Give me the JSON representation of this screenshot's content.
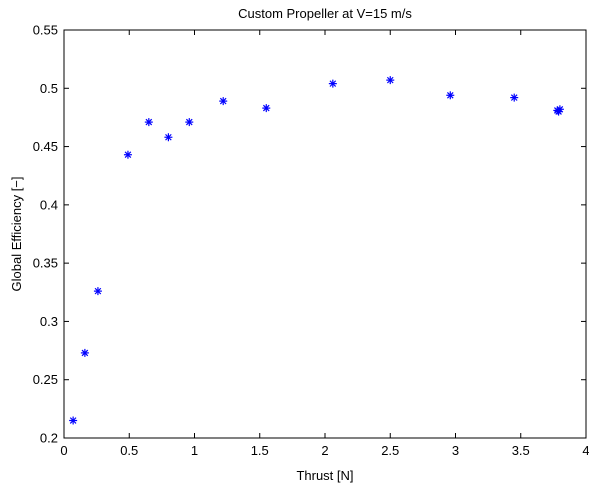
{
  "chart_data": {
    "type": "scatter",
    "title": "Custom Propeller at V=15 m/s",
    "xlabel": "Thrust [N]",
    "ylabel": "Global Efficiency [−]",
    "xlim": [
      0,
      4
    ],
    "ylim": [
      0.2,
      0.55
    ],
    "xticks": [
      0,
      0.5,
      1,
      1.5,
      2,
      2.5,
      3,
      3.5,
      4
    ],
    "yticks": [
      0.2,
      0.25,
      0.3,
      0.35,
      0.4,
      0.45,
      0.5,
      0.55
    ],
    "xtick_labels": [
      "0",
      "0.5",
      "1",
      "1.5",
      "2",
      "2.5",
      "3",
      "3.5",
      "4"
    ],
    "ytick_labels": [
      "0.2",
      "0.25",
      "0.3",
      "0.35",
      "0.4",
      "0.45",
      "0.5",
      "0.55"
    ],
    "marker": "asterisk",
    "marker_color": "#0000ff",
    "grid": false,
    "series": [
      {
        "points": [
          {
            "x": 0.07,
            "y": 0.215
          },
          {
            "x": 0.16,
            "y": 0.273
          },
          {
            "x": 0.26,
            "y": 0.326
          },
          {
            "x": 0.49,
            "y": 0.443
          },
          {
            "x": 0.65,
            "y": 0.471
          },
          {
            "x": 0.8,
            "y": 0.458
          },
          {
            "x": 0.96,
            "y": 0.471
          },
          {
            "x": 1.22,
            "y": 0.489
          },
          {
            "x": 1.55,
            "y": 0.483
          },
          {
            "x": 2.06,
            "y": 0.504
          },
          {
            "x": 2.5,
            "y": 0.507
          },
          {
            "x": 2.96,
            "y": 0.494
          },
          {
            "x": 3.45,
            "y": 0.492
          },
          {
            "x": 3.78,
            "y": 0.481
          },
          {
            "x": 3.8,
            "y": 0.482
          },
          {
            "x": 3.79,
            "y": 0.48
          }
        ]
      }
    ]
  }
}
